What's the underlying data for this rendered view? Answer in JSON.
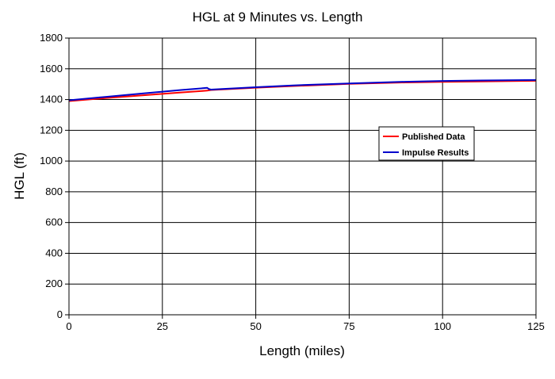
{
  "chart_data": {
    "type": "line",
    "title": "HGL at 9 Minutes vs. Length",
    "xlabel": "Length (miles)",
    "ylabel": "HGL (ft)",
    "xlim": [
      0,
      125
    ],
    "ylim": [
      0,
      1800
    ],
    "xticks": [
      0,
      25,
      50,
      75,
      100,
      125
    ],
    "yticks": [
      0,
      200,
      400,
      600,
      800,
      1000,
      1200,
      1400,
      1600,
      1800
    ],
    "grid": true,
    "legend_position": "right-center",
    "series": [
      {
        "name": "Published Data",
        "color": "#ff0000",
        "x": [
          0,
          10,
          20,
          30,
          37,
          38,
          50,
          60,
          75,
          90,
          100,
          110,
          125
        ],
        "y": [
          1390,
          1410,
          1428,
          1446,
          1458,
          1462,
          1477,
          1488,
          1502,
          1511,
          1515,
          1518,
          1522
        ]
      },
      {
        "name": "Impulse Results",
        "color": "#0000cc",
        "x": [
          0,
          10,
          20,
          30,
          37,
          37.5,
          38,
          50,
          60,
          75,
          90,
          100,
          110,
          125
        ],
        "y": [
          1395,
          1418,
          1440,
          1462,
          1476,
          1468,
          1465,
          1480,
          1492,
          1505,
          1516,
          1521,
          1524,
          1527
        ]
      }
    ]
  }
}
